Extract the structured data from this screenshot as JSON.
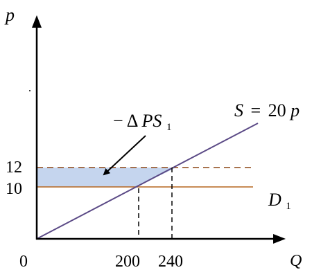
{
  "diagram": {
    "y_axis_label": "p",
    "x_axis_label": "Q",
    "origin_label": "0",
    "price_ticks": {
      "high": "12",
      "low": "10"
    },
    "quantity_ticks": {
      "left": "200",
      "right": "240"
    },
    "supply_label": {
      "var": "S",
      "equals": "=",
      "coef": "20",
      "price_var": "p"
    },
    "demand_label": {
      "name": "D",
      "subscript": "1"
    },
    "ps_label": {
      "minus": "−",
      "delta": "Δ",
      "name": "PS",
      "subscript": "1"
    },
    "colors": {
      "axis": "#000000",
      "supply_line": "#5b4a86",
      "demand_line": "#b5651d",
      "old_price_dashed": "#8b4513",
      "shaded_area": "#c5d5ee",
      "arrow": "#000000"
    }
  }
}
